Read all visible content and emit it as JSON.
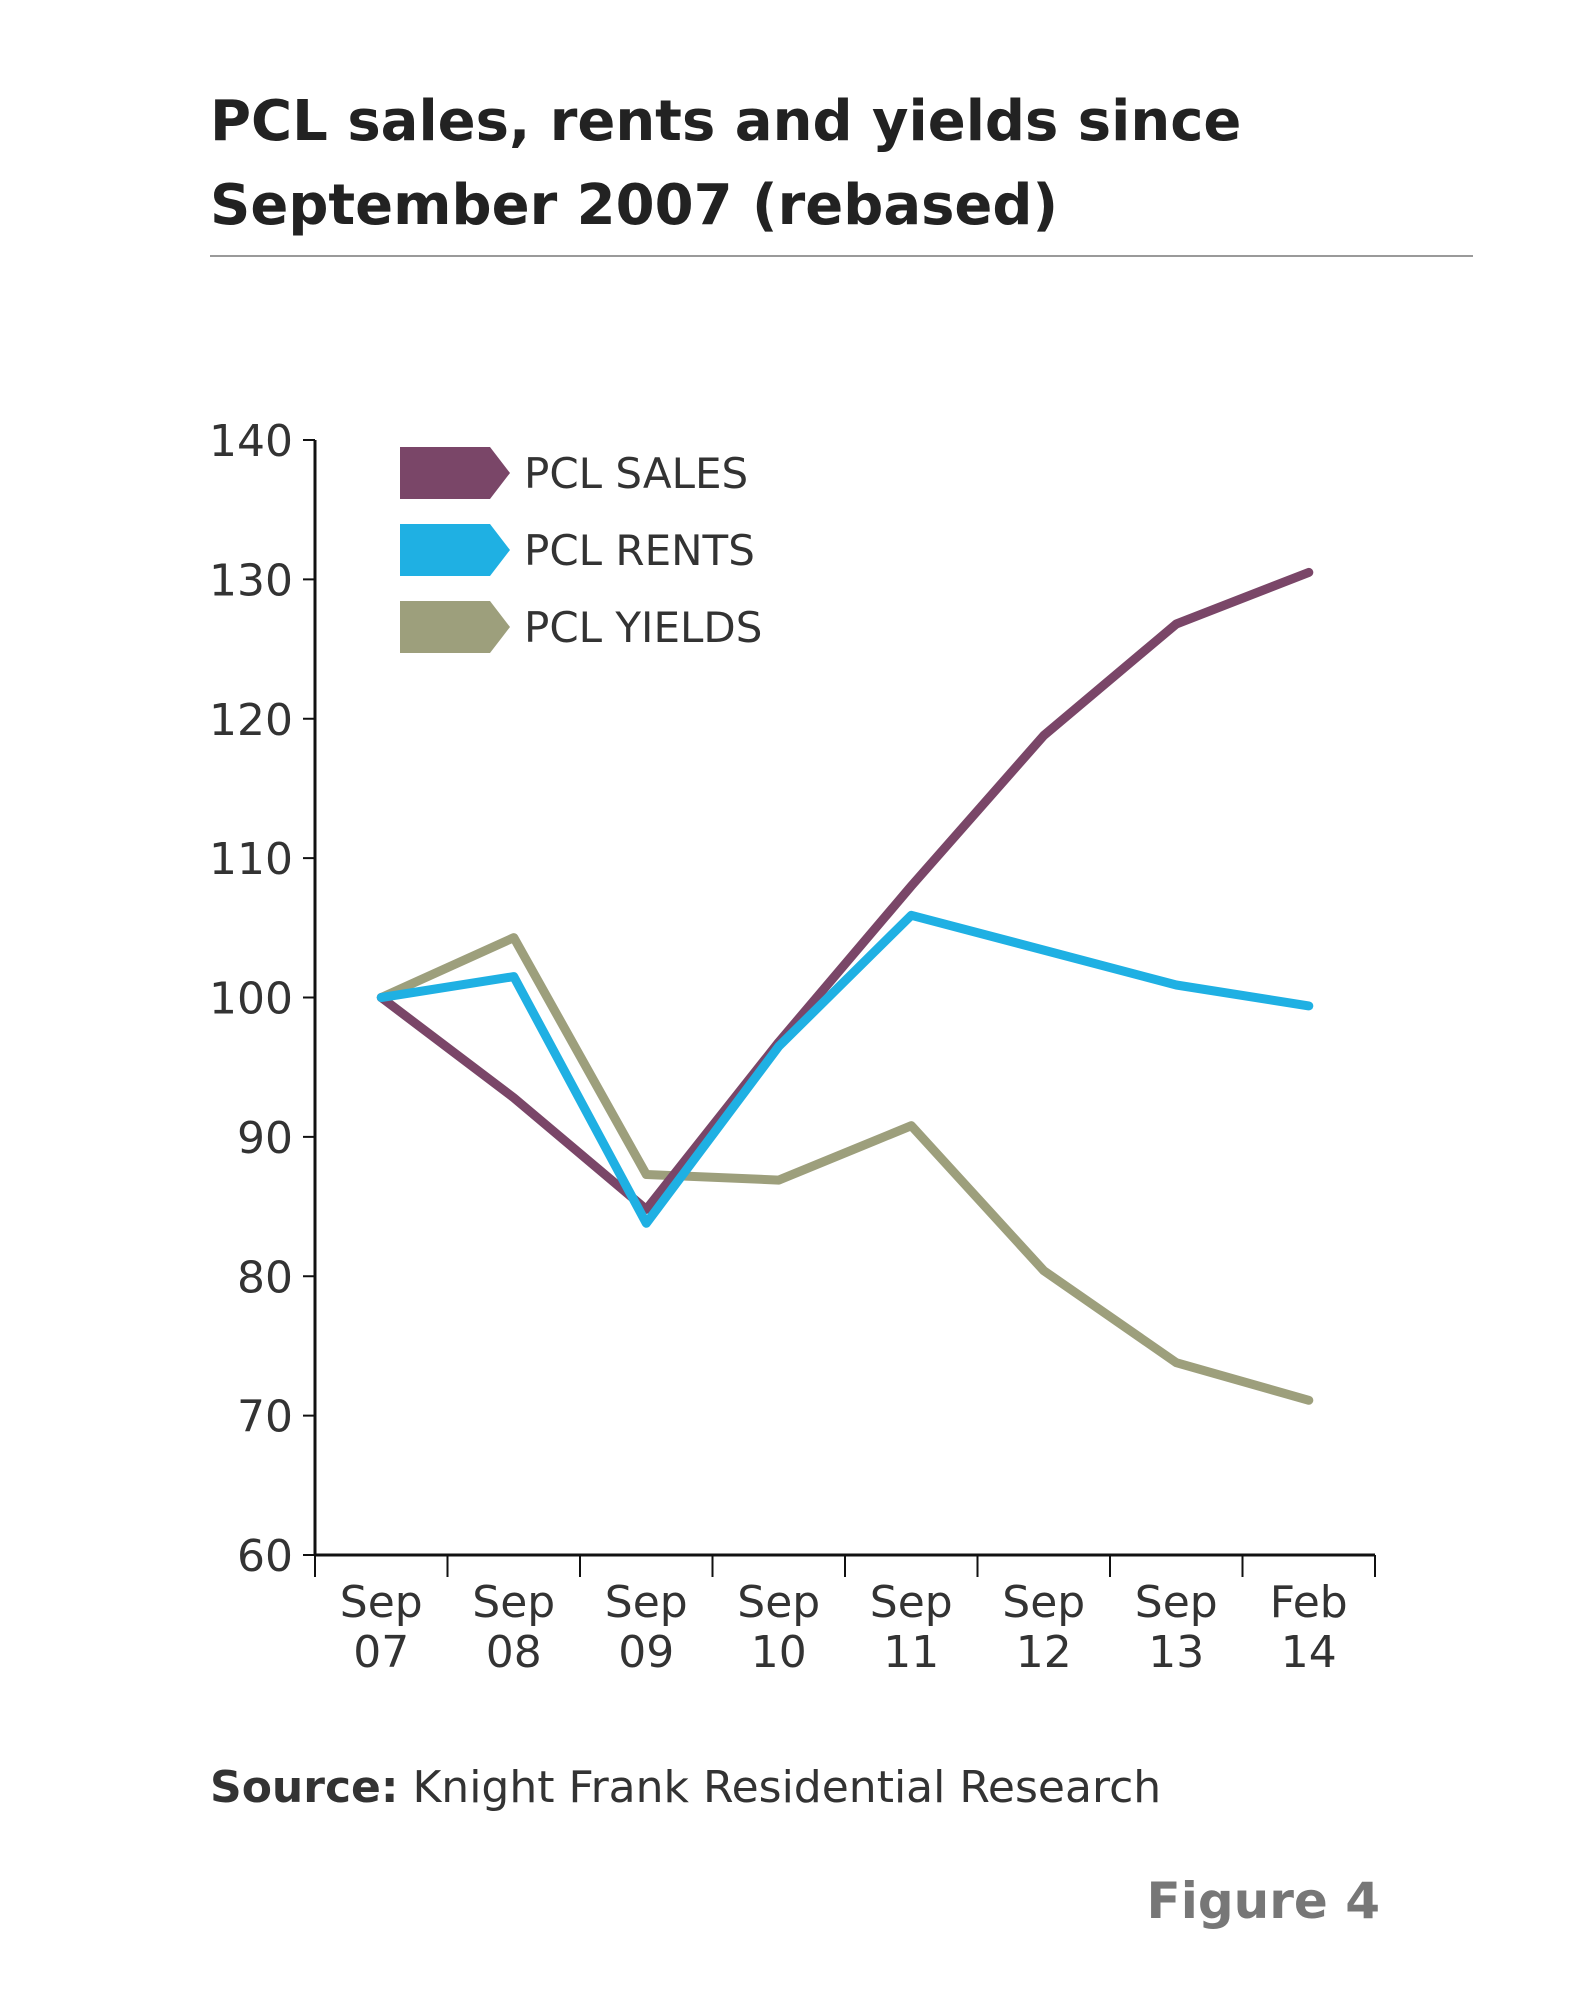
{
  "chart_data": {
    "type": "line",
    "title_lines": [
      "PCL sales, rents and yields since",
      "September 2007 (rebased)"
    ],
    "categories": [
      "Sep 07",
      "Sep 08",
      "Sep 09",
      "Sep 10",
      "Sep 11",
      "Sep 12",
      "Sep 13",
      "Feb 14"
    ],
    "x_tick_labels": [
      {
        "top": "Sep",
        "bottom": "07"
      },
      {
        "top": "Sep",
        "bottom": "08"
      },
      {
        "top": "Sep",
        "bottom": "09"
      },
      {
        "top": "Sep",
        "bottom": "10"
      },
      {
        "top": "Sep",
        "bottom": "11"
      },
      {
        "top": "Sep",
        "bottom": "12"
      },
      {
        "top": "Sep",
        "bottom": "13"
      },
      {
        "top": "Feb",
        "bottom": "14"
      }
    ],
    "y_ticks": [
      60,
      70,
      80,
      90,
      100,
      110,
      120,
      130,
      140
    ],
    "ylim": [
      60,
      140
    ],
    "grid": false,
    "legend_position": "top-left",
    "series": [
      {
        "name": "PCL SALES",
        "color": "#7a4668",
        "values": [
          100,
          92.8,
          84.8,
          96.8,
          108,
          118.8,
          126.8,
          130.5
        ]
      },
      {
        "name": "PCL RENTS",
        "color": "#1fb0e3",
        "values": [
          100,
          101.5,
          83.8,
          96.5,
          105.9,
          103.4,
          100.9,
          99.4
        ]
      },
      {
        "name": "PCL YIELDS",
        "color": "#9d9f7c",
        "values": [
          100,
          104.3,
          87.3,
          86.9,
          90.8,
          80.4,
          73.8,
          71.1
        ]
      }
    ]
  },
  "source": {
    "label": "Source:",
    "text": " Knight Frank Residential Research"
  },
  "figure_label": "Figure 4"
}
